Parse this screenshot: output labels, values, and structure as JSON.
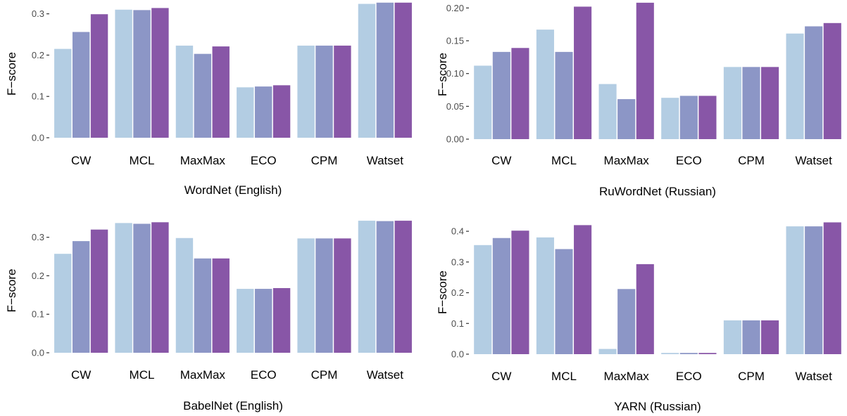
{
  "colors": [
    "#b3cde3",
    "#8c96c6",
    "#8856a7"
  ],
  "chart_data": [
    {
      "type": "bar",
      "xlabel": "WordNet (English)",
      "ylabel": "F−score",
      "ylim": [
        0,
        0.33
      ],
      "yticks": [
        0.0,
        0.1,
        0.2,
        0.3
      ],
      "ytick_labels": [
        "0.0",
        "0.1",
        "0.2",
        "0.3"
      ],
      "categories": [
        "CW",
        "MCL",
        "MaxMax",
        "ECO",
        "CPM",
        "Watset"
      ],
      "series": [
        {
          "values": [
            0.215,
            0.31,
            0.223,
            0.122,
            0.223,
            0.324
          ]
        },
        {
          "values": [
            0.256,
            0.309,
            0.203,
            0.124,
            0.223,
            0.327
          ]
        },
        {
          "values": [
            0.299,
            0.314,
            0.221,
            0.127,
            0.223,
            0.327
          ]
        }
      ]
    },
    {
      "type": "bar",
      "xlabel": "RuWordNet (Russian)",
      "ylabel": "F−score",
      "ylim": [
        0,
        0.21
      ],
      "yticks": [
        0.0,
        0.05,
        0.1,
        0.15,
        0.2
      ],
      "ytick_labels": [
        "0.00",
        "0.05",
        "0.10",
        "0.15",
        "0.20"
      ],
      "categories": [
        "CW",
        "MCL",
        "MaxMax",
        "ECO",
        "CPM",
        "Watset"
      ],
      "series": [
        {
          "values": [
            0.112,
            0.167,
            0.084,
            0.063,
            0.11,
            0.161
          ]
        },
        {
          "values": [
            0.133,
            0.133,
            0.061,
            0.066,
            0.11,
            0.172
          ]
        },
        {
          "values": [
            0.139,
            0.202,
            0.208,
            0.066,
            0.11,
            0.177
          ]
        }
      ]
    },
    {
      "type": "bar",
      "xlabel": "BabelNet (English)",
      "ylabel": "F−score",
      "ylim": [
        0,
        0.345
      ],
      "yticks": [
        0.0,
        0.1,
        0.2,
        0.3
      ],
      "ytick_labels": [
        "0.0",
        "0.1",
        "0.2",
        "0.3"
      ],
      "categories": [
        "CW",
        "MCL",
        "MaxMax",
        "ECO",
        "CPM",
        "Watset"
      ],
      "series": [
        {
          "values": [
            0.257,
            0.337,
            0.298,
            0.166,
            0.297,
            0.343
          ]
        },
        {
          "values": [
            0.29,
            0.335,
            0.245,
            0.166,
            0.297,
            0.342
          ]
        },
        {
          "values": [
            0.32,
            0.339,
            0.245,
            0.168,
            0.297,
            0.343
          ]
        }
      ]
    },
    {
      "type": "bar",
      "xlabel": "YARN (Russian)",
      "ylabel": "F−score",
      "ylim": [
        0,
        0.43
      ],
      "yticks": [
        0.0,
        0.1,
        0.2,
        0.3,
        0.4
      ],
      "ytick_labels": [
        "0.0",
        "0.1",
        "0.2",
        "0.3",
        "0.4"
      ],
      "categories": [
        "CW",
        "MCL",
        "MaxMax",
        "ECO",
        "CPM",
        "Watset"
      ],
      "series": [
        {
          "values": [
            0.355,
            0.38,
            0.017,
            0.004,
            0.11,
            0.416
          ]
        },
        {
          "values": [
            0.378,
            0.342,
            0.212,
            0.004,
            0.11,
            0.416
          ]
        },
        {
          "values": [
            0.402,
            0.42,
            0.293,
            0.004,
            0.11,
            0.429
          ]
        }
      ]
    }
  ]
}
